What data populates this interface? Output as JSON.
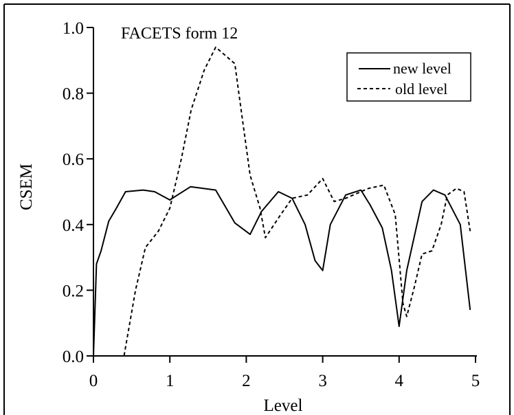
{
  "chart_data": {
    "type": "line",
    "title": "FACETS form 12",
    "xlabel": "Level",
    "ylabel": "CSEM",
    "xlim": [
      0,
      5
    ],
    "ylim": [
      0,
      1.0
    ],
    "xticks": [
      0,
      1,
      2,
      3,
      4,
      5
    ],
    "xtick_labels": [
      "0",
      "1",
      "2",
      "3",
      "4",
      "5"
    ],
    "yticks": [
      0,
      0.2,
      0.4,
      0.6,
      0.8,
      1.0
    ],
    "ytick_labels": [
      "0.0",
      "0.2",
      "0.4",
      "0.6",
      "0.8",
      "1.0"
    ],
    "grid": false,
    "legend_position": "top-right",
    "series": [
      {
        "name": "new level",
        "style": "solid",
        "color": "#000000",
        "x": [
          0,
          0.04,
          0.1,
          0.2,
          0.3,
          0.42,
          0.65,
          0.8,
          1.0,
          1.1,
          1.27,
          1.6,
          1.85,
          2.05,
          2.2,
          2.42,
          2.6,
          2.77,
          2.9,
          3.0,
          3.1,
          3.3,
          3.5,
          3.62,
          3.78,
          3.9,
          4.0,
          4.1,
          4.3,
          4.45,
          4.6,
          4.8,
          4.93
        ],
        "y": [
          0.0,
          0.28,
          0.32,
          0.41,
          0.45,
          0.5,
          0.505,
          0.5,
          0.475,
          0.49,
          0.515,
          0.505,
          0.405,
          0.37,
          0.44,
          0.5,
          0.48,
          0.4,
          0.29,
          0.26,
          0.4,
          0.49,
          0.505,
          0.46,
          0.39,
          0.26,
          0.09,
          0.26,
          0.47,
          0.505,
          0.49,
          0.4,
          0.14
        ]
      },
      {
        "name": "old level",
        "style": "dashed",
        "color": "#000000",
        "x": [
          0,
          0.2,
          0.4,
          0.55,
          0.68,
          0.85,
          1.0,
          1.15,
          1.28,
          1.45,
          1.6,
          1.75,
          1.85,
          1.95,
          2.05,
          2.18,
          2.25,
          2.45,
          2.6,
          2.8,
          3.0,
          3.15,
          3.3,
          3.5,
          3.6,
          3.8,
          3.95,
          4.05,
          4.1,
          4.2,
          4.3,
          4.43,
          4.55,
          4.63,
          4.75,
          4.85,
          4.93
        ],
        "y": [
          0.0,
          0.0,
          0.0,
          0.2,
          0.33,
          0.38,
          0.45,
          0.6,
          0.75,
          0.87,
          0.94,
          0.91,
          0.89,
          0.72,
          0.55,
          0.45,
          0.36,
          0.43,
          0.48,
          0.49,
          0.54,
          0.47,
          0.48,
          0.5,
          0.51,
          0.52,
          0.43,
          0.16,
          0.12,
          0.21,
          0.31,
          0.32,
          0.4,
          0.49,
          0.51,
          0.5,
          0.38
        ]
      }
    ]
  }
}
